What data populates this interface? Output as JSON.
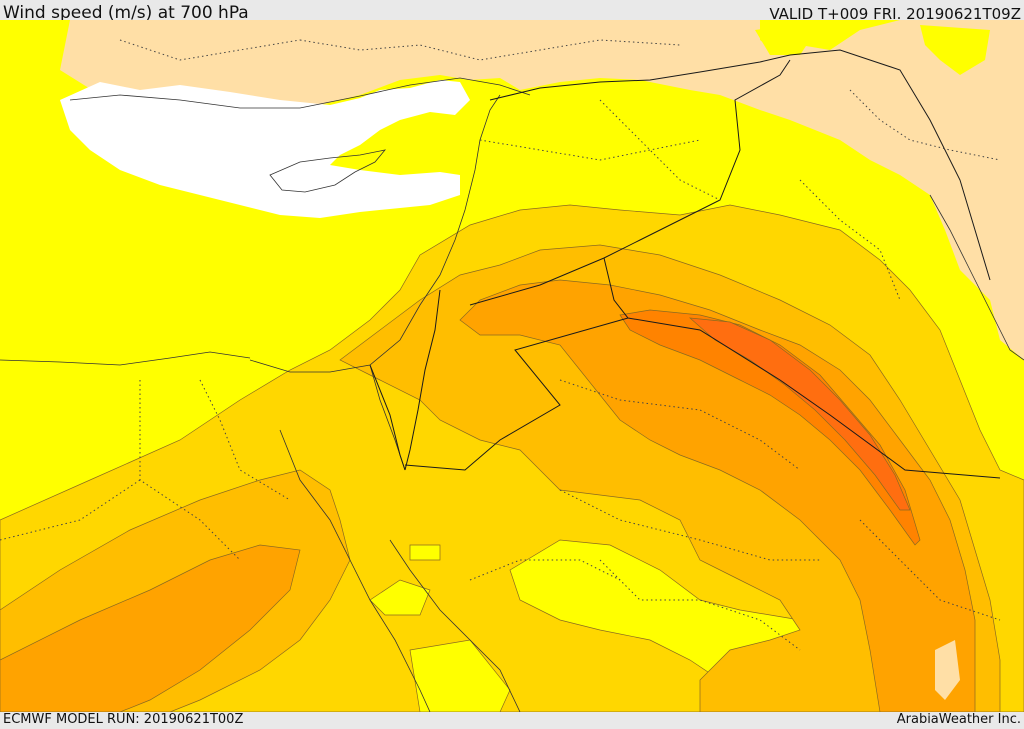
{
  "header": {
    "title": "Wind speed (m/s) at 700 hPa",
    "valid": "VALID T+009 FRI. 20190621T09Z"
  },
  "footer": {
    "model_run": "ECMWF MODEL RUN: 20190621T00Z",
    "credit": "ArabiaWeather Inc."
  },
  "map": {
    "region": "Eastern Mediterranean / Levant / Arabia",
    "colors": {
      "sea_white": "#ffffff",
      "lowest_tan": "#ffdfa6",
      "low_yellow": "#ffff00",
      "mid_yellow": "#ffd700",
      "orange_light": "#ffbe00",
      "orange": "#ffa300",
      "orange_dark": "#ff8300",
      "orange_deep": "#ff6e10"
    }
  }
}
